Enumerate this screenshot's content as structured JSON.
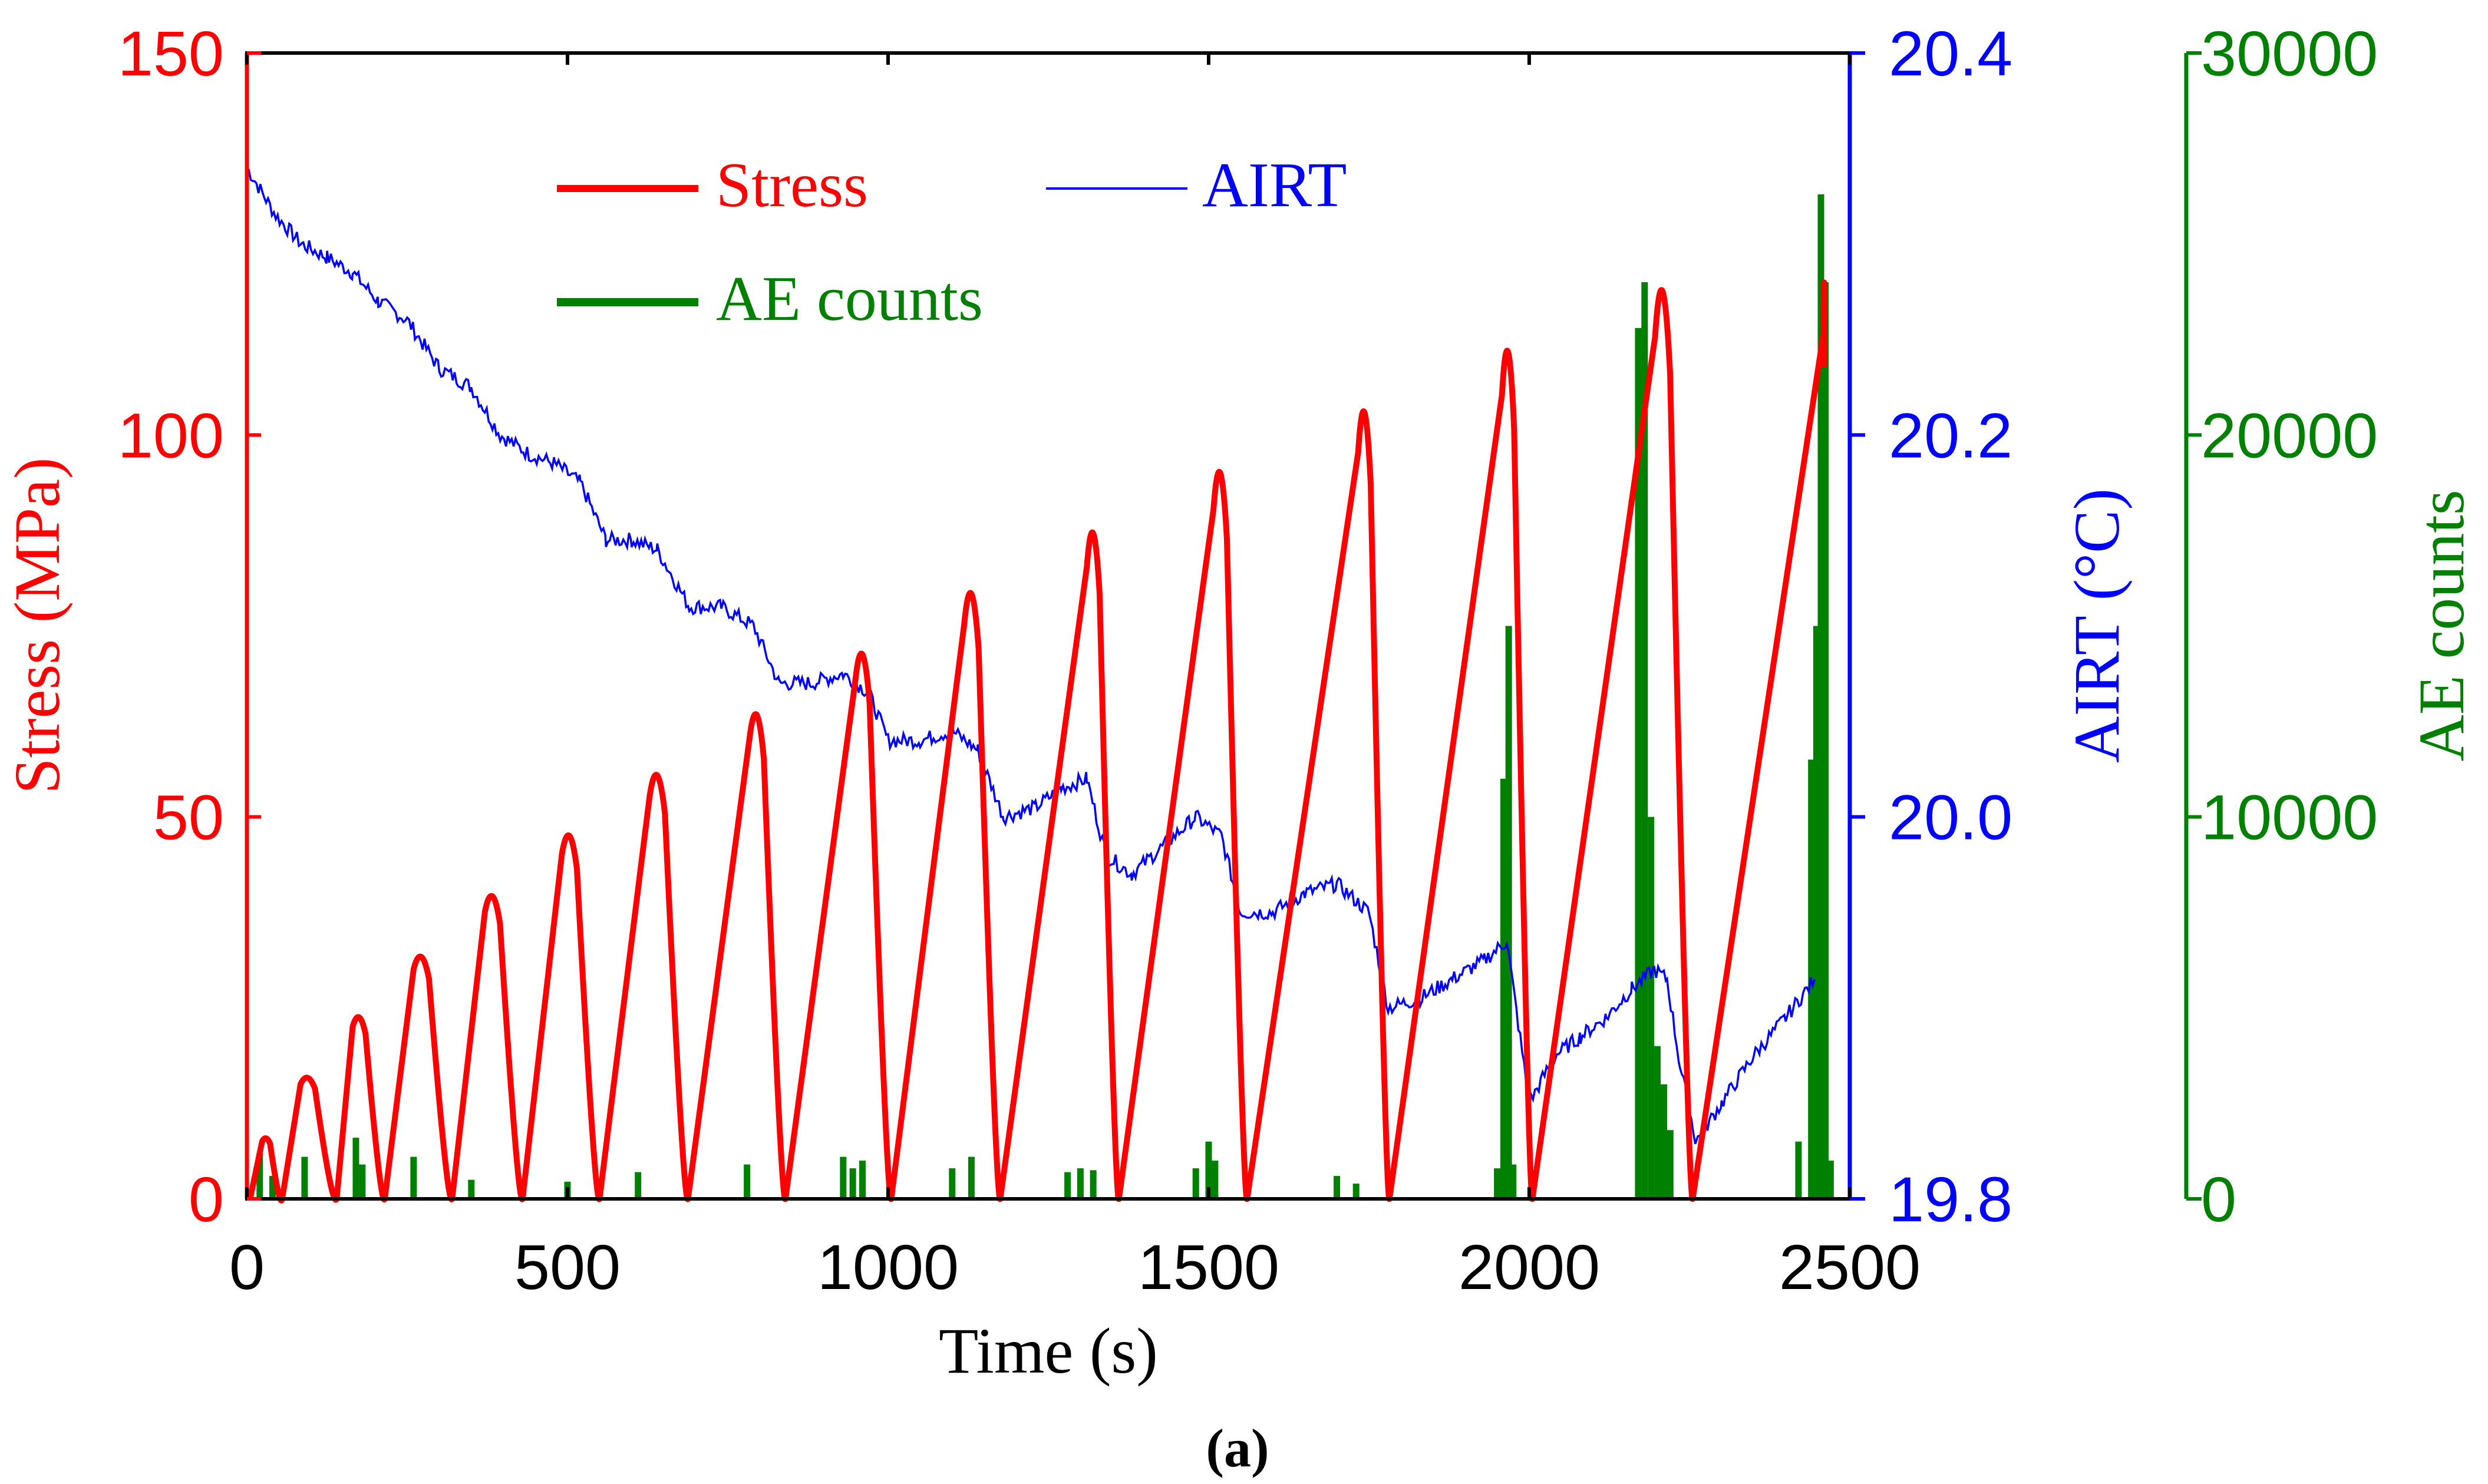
{
  "chart_data": {
    "type": "line",
    "subfigure_label": "(a)",
    "xlabel": "Time (s)",
    "xlim": [
      0,
      2500
    ],
    "x_ticks": [
      0,
      500,
      1000,
      1500,
      2000,
      2500
    ],
    "y_left": {
      "label": "Stress (MPa)",
      "lim": [
        0,
        150
      ],
      "ticks": [
        0,
        50,
        100,
        150
      ],
      "color": "#ff0000"
    },
    "y_right1": {
      "label": "AIRT (°C)",
      "lim": [
        19.8,
        20.4
      ],
      "ticks": [
        "19.8",
        "20.0",
        "20.2",
        "20.4"
      ],
      "color": "#0000ff"
    },
    "y_right2": {
      "label": "AE counts",
      "lim": [
        0,
        30000
      ],
      "ticks": [
        0,
        10000,
        20000,
        30000
      ],
      "color": "#008000"
    },
    "legend": {
      "position": "top-left",
      "entries": [
        {
          "name": "Stress",
          "color": "#ff0000"
        },
        {
          "name": "AIRT",
          "color": "#0000ff"
        },
        {
          "name": "AE counts",
          "color": "#008000"
        }
      ]
    },
    "series": [
      {
        "name": "Stress",
        "axis": "left",
        "color": "#ff0000",
        "cycles": [
          {
            "start": 5,
            "peak_time": 30,
            "peak": 8,
            "min_time": 55
          },
          {
            "start": 55,
            "peak_time": 95,
            "peak": 16,
            "min_time": 140
          },
          {
            "start": 140,
            "peak_time": 175,
            "peak": 24,
            "min_time": 215
          },
          {
            "start": 215,
            "peak_time": 272,
            "peak": 32,
            "min_time": 320
          },
          {
            "start": 320,
            "peak_time": 383,
            "peak": 40,
            "min_time": 430
          },
          {
            "start": 430,
            "peak_time": 503,
            "peak": 48,
            "min_time": 550
          },
          {
            "start": 550,
            "peak_time": 640,
            "peak": 56,
            "min_time": 688
          },
          {
            "start": 688,
            "peak_time": 795,
            "peak": 64,
            "min_time": 840
          },
          {
            "start": 840,
            "peak_time": 960,
            "peak": 72,
            "min_time": 1005
          },
          {
            "start": 1005,
            "peak_time": 1130,
            "peak": 80,
            "min_time": 1175
          },
          {
            "start": 1175,
            "peak_time": 1320,
            "peak": 88,
            "min_time": 1360
          },
          {
            "start": 1360,
            "peak_time": 1518,
            "peak": 96,
            "min_time": 1560
          },
          {
            "start": 1560,
            "peak_time": 1743,
            "peak": 104,
            "min_time": 1782
          },
          {
            "start": 1782,
            "peak_time": 1967,
            "peak": 112,
            "min_time": 2005
          },
          {
            "start": 2005,
            "peak_time": 2208,
            "peak": 120,
            "min_time": 2255
          },
          {
            "start": 2255,
            "peak_time": 2460,
            "peak": 121,
            "min_time": 2460
          }
        ]
      },
      {
        "name": "AIRT",
        "axis": "right1",
        "color": "#0000ff",
        "x": [
          0,
          45,
          85,
          125,
          165,
          205,
          250,
          300,
          350,
          395,
          440,
          480,
          520,
          560,
          600,
          640,
          690,
          740,
          790,
          830,
          880,
          930,
          970,
          1000,
          1050,
          1100,
          1140,
          1180,
          1230,
          1270,
          1310,
          1340,
          1380,
          1430,
          1480,
          1520,
          1550,
          1600,
          1650,
          1700,
          1750,
          1780,
          1830,
          1880,
          1930,
          1965,
          2000,
          2040,
          2080,
          2120,
          2160,
          2195,
          2215,
          2235,
          2260,
          2300,
          2350,
          2400,
          2445
        ],
        "y": [
          20.34,
          20.315,
          20.3,
          20.293,
          20.285,
          20.27,
          20.26,
          20.235,
          20.225,
          20.2,
          20.19,
          20.185,
          20.175,
          20.145,
          20.145,
          20.14,
          20.11,
          20.11,
          20.1,
          20.07,
          20.07,
          20.075,
          20.065,
          20.04,
          20.04,
          20.045,
          20.035,
          20.0,
          20.005,
          20.015,
          20.02,
          19.98,
          19.97,
          19.985,
          20.0,
          19.99,
          19.95,
          19.95,
          19.96,
          19.965,
          19.95,
          19.9,
          19.905,
          19.915,
          19.925,
          19.935,
          19.85,
          19.875,
          19.885,
          19.895,
          19.91,
          19.92,
          19.915,
          19.87,
          19.83,
          19.85,
          19.875,
          19.895,
          19.915
        ]
      },
      {
        "name": "AE counts",
        "axis": "right2",
        "color": "#008000",
        "x": [
          20,
          40,
          90,
          170,
          180,
          260,
          350,
          500,
          610,
          780,
          930,
          945,
          960,
          1100,
          1130,
          1280,
          1300,
          1320,
          1480,
          1500,
          1510,
          1700,
          1730,
          1950,
          1960,
          1968,
          1975,
          2170,
          2180,
          2190,
          2200,
          2210,
          2220,
          2420,
          2440,
          2448,
          2455,
          2462,
          2470
        ],
        "values": [
          1200,
          600,
          1100,
          1600,
          900,
          1100,
          500,
          450,
          700,
          900,
          1100,
          800,
          1000,
          800,
          1100,
          700,
          800,
          750,
          800,
          1500,
          1000,
          600,
          400,
          800,
          11000,
          15000,
          900,
          22800,
          24000,
          10000,
          4000,
          3000,
          1800,
          1500,
          11500,
          15000,
          26300,
          24000,
          1000
        ]
      }
    ]
  }
}
